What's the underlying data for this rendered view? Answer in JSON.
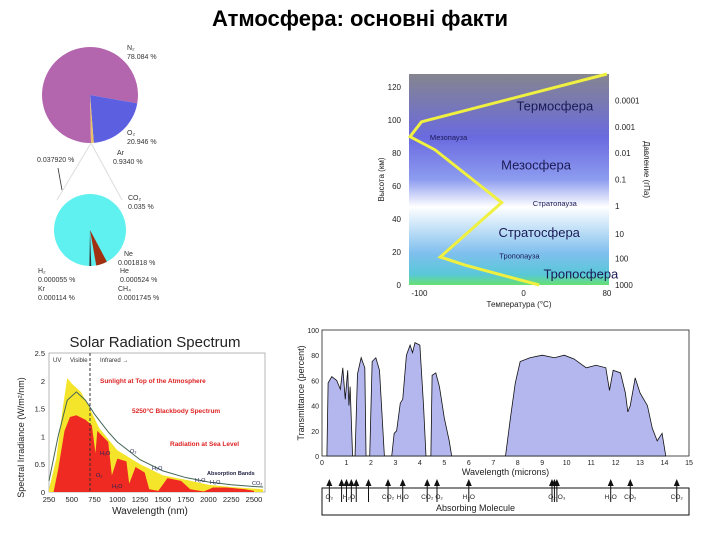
{
  "slide": {
    "title": "Атмосфера: основні факти"
  },
  "chart_data": [
    {
      "type": "pie",
      "title": "",
      "main_pie": [
        {
          "label": "N₂",
          "value_label": "78.084 %",
          "value": 78.084,
          "color": "#b366ad"
        },
        {
          "label": "O₂",
          "value_label": "20.946 %",
          "value": 20.946,
          "color": "#5b5fe0"
        },
        {
          "label": "Ar",
          "value_label": "0.9340 %",
          "value": 0.934,
          "color": "#e8c06a"
        }
      ],
      "other_label": "0.037920 %",
      "detail_pie": [
        {
          "label": "CO₂",
          "value_label": "0.035 %",
          "value": 0.035,
          "color": "#5ff0f0"
        },
        {
          "label": "Ne",
          "value_label": "0.001818 %",
          "value": 0.001818,
          "color": "#a0300f"
        },
        {
          "label": "He",
          "value_label": "0.000524 %",
          "value": 0.000524,
          "color": "#333333"
        },
        {
          "label": "CH₄",
          "value_label": "0.0001745 %",
          "value": 0.0001745,
          "color": "#777777"
        },
        {
          "label": "H₂",
          "value_label": "0.000055 %",
          "value": 5.5e-05,
          "color": "#999999"
        },
        {
          "label": "Kr",
          "value_label": "0.000114 %",
          "value": 0.000114,
          "color": "#bbbbbb"
        }
      ]
    },
    {
      "type": "line",
      "xlabel": "Температура (°C)",
      "ylabel": "Высота (км)",
      "y2label": "Давление (гПа)",
      "xlim": [
        -110,
        82
      ],
      "ylim": [
        0,
        128
      ],
      "xticks": [
        "-100",
        "0",
        "80"
      ],
      "xtick_values": [
        -100,
        0,
        80
      ],
      "yticks": [
        "0",
        "20",
        "40",
        "60",
        "80",
        "100",
        "120"
      ],
      "ytick_values": [
        0,
        20,
        40,
        60,
        80,
        100,
        120
      ],
      "y2ticks": [
        "1000",
        "100",
        "10",
        "1",
        "0.1",
        "0.01",
        "0.001",
        "0.0001"
      ],
      "y2tick_alts": [
        0,
        16,
        31,
        48,
        64,
        80,
        96,
        112
      ],
      "layers": [
        {
          "label": "Термосфера",
          "alt": 106,
          "temp": 30,
          "size": "big"
        },
        {
          "label": "Мезопауза",
          "alt": 88,
          "temp": -72,
          "size": "small"
        },
        {
          "label": "Мезосфера",
          "alt": 70,
          "temp": 12,
          "size": "big"
        },
        {
          "label": "Стратопауза",
          "alt": 48,
          "temp": 30,
          "size": "small"
        },
        {
          "label": "Стратосфера",
          "alt": 29,
          "temp": 15,
          "size": "big"
        },
        {
          "label": "Тропопауза",
          "alt": 16,
          "temp": -4,
          "size": "small"
        },
        {
          "label": "Тропосфера",
          "alt": 4,
          "temp": 55,
          "size": "big"
        }
      ],
      "series": [
        {
          "name": "Temperature",
          "color": "#f0f040",
          "points": [
            [
              15,
              0
            ],
            [
              -56,
              12
            ],
            [
              -80,
              17
            ],
            [
              -21,
              50
            ],
            [
              -85,
              82
            ],
            [
              -109,
              90
            ],
            [
              -98,
              99
            ],
            [
              80,
              128
            ]
          ]
        }
      ]
    },
    {
      "type": "area",
      "title": "Solar Radiation Spectrum",
      "xlabel": "Wavelength (nm)",
      "ylabel": "Spectral Irradiance (W/m²/nm)",
      "xlim": [
        250,
        2600
      ],
      "ylim": [
        0,
        2.5
      ],
      "xticks": [
        "250",
        "500",
        "750",
        "1000",
        "1250",
        "1500",
        "1750",
        "2000",
        "2250",
        "2500"
      ],
      "xtick_values": [
        250,
        500,
        750,
        1000,
        1250,
        1500,
        1750,
        2000,
        2250,
        2500
      ],
      "yticks": [
        "0",
        "0.5",
        "1",
        "1.5",
        "2",
        "2.5"
      ],
      "ytick_values": [
        0,
        0.5,
        1,
        1.5,
        2,
        2.5
      ],
      "regions": [
        "UV",
        "Visible",
        "Infrared →"
      ],
      "annotations": [
        "Sunlight at Top of the Atmosphere",
        "5250°C Blackbody Spectrum",
        "Radiation at Sea Level",
        "Absorption Bands"
      ],
      "band_labels": [
        "O₃",
        "O₂",
        "H₂O",
        "H₂O",
        "H₂O",
        "H₂O",
        "CO₂",
        "H₂O"
      ],
      "series": [
        {
          "name": "Top of the Atmosphere",
          "color": "#f5e52a",
          "points": [
            [
              250,
              0.05
            ],
            [
              330,
              0.6
            ],
            [
              400,
              1.5
            ],
            [
              450,
              2.05
            ],
            [
              500,
              1.95
            ],
            [
              600,
              1.8
            ],
            [
              700,
              1.5
            ],
            [
              800,
              1.15
            ],
            [
              900,
              0.95
            ],
            [
              1000,
              0.75
            ],
            [
              1250,
              0.5
            ],
            [
              1500,
              0.3
            ],
            [
              1750,
              0.22
            ],
            [
              2000,
              0.13
            ],
            [
              2250,
              0.09
            ],
            [
              2500,
              0.06
            ],
            [
              2600,
              0.05
            ]
          ]
        },
        {
          "name": "Sea Level",
          "color": "#ee2a22",
          "points": [
            [
              300,
              0
            ],
            [
              350,
              0.4
            ],
            [
              420,
              1.1
            ],
            [
              480,
              1.35
            ],
            [
              550,
              1.38
            ],
            [
              650,
              1.3
            ],
            [
              720,
              1.2
            ],
            [
              760,
              0.7
            ],
            [
              780,
              1.1
            ],
            [
              900,
              0.9
            ],
            [
              940,
              0.3
            ],
            [
              1000,
              0.6
            ],
            [
              1100,
              0.55
            ],
            [
              1130,
              0.15
            ],
            [
              1200,
              0.45
            ],
            [
              1300,
              0.35
            ],
            [
              1350,
              0.05
            ],
            [
              1450,
              0.02
            ],
            [
              1550,
              0.25
            ],
            [
              1700,
              0.2
            ],
            [
              1800,
              0.05
            ],
            [
              1950,
              0.01
            ],
            [
              2050,
              0.08
            ],
            [
              2200,
              0.08
            ],
            [
              2400,
              0.05
            ],
            [
              2500,
              0.02
            ]
          ]
        },
        {
          "name": "5250°C Blackbody Spectrum",
          "color": "#446655",
          "points": [
            [
              250,
              0.2
            ],
            [
              350,
              1.0
            ],
            [
              450,
              1.65
            ],
            [
              550,
              1.8
            ],
            [
              650,
              1.65
            ],
            [
              750,
              1.4
            ],
            [
              900,
              1.08
            ],
            [
              1000,
              0.9
            ],
            [
              1250,
              0.58
            ],
            [
              1500,
              0.38
            ],
            [
              1750,
              0.26
            ],
            [
              2000,
              0.18
            ],
            [
              2250,
              0.13
            ],
            [
              2500,
              0.1
            ],
            [
              2600,
              0.09
            ]
          ]
        }
      ]
    },
    {
      "type": "area",
      "xlabel": "Wavelength (microns)",
      "ylabel": "Transmittance (percent)",
      "xlim": [
        0,
        15
      ],
      "ylim": [
        0,
        100
      ],
      "xticks": [
        "0",
        "1",
        "2",
        "3",
        "4",
        "5",
        "6",
        "7",
        "8",
        "9",
        "10",
        "11",
        "12",
        "13",
        "14",
        "15"
      ],
      "xtick_values": [
        0,
        1,
        2,
        3,
        4,
        5,
        6,
        7,
        8,
        9,
        10,
        11,
        12,
        13,
        14,
        15
      ],
      "yticks": [
        "0",
        "20",
        "40",
        "60",
        "80",
        "100"
      ],
      "ytick_values": [
        0,
        20,
        40,
        60,
        80,
        100
      ],
      "molecule_box_label": "Absorbing Molecule",
      "molecules": [
        {
          "label": "O₂",
          "x": 0.3
        },
        {
          "label": "H₂O",
          "x": 1.1
        },
        {
          "label": "CO₂",
          "x": 2.7
        },
        {
          "label": "H₂O",
          "x": 3.3
        },
        {
          "label": "CO₂",
          "x": 4.3
        },
        {
          "label": "O₂",
          "x": 4.7
        },
        {
          "label": "H₂O",
          "x": 6.0
        },
        {
          "label": "O₂",
          "x": 9.4
        },
        {
          "label": "O₃",
          "x": 9.6
        },
        {
          "label": "H₂O",
          "x": 11.8
        },
        {
          "label": "CO₂",
          "x": 12.6
        },
        {
          "label": "CO₂",
          "x": 14.5
        }
      ],
      "arrow_positions": [
        0.3,
        0.8,
        1.0,
        1.2,
        1.4,
        1.9,
        2.7,
        3.3,
        4.3,
        4.7,
        6.0,
        9.4,
        9.5,
        9.6,
        11.8,
        12.6,
        14.5
      ],
      "series": [
        {
          "name": "Transmittance",
          "color": "#b4b6ee",
          "points": [
            [
              0.2,
              0
            ],
            [
              0.25,
              58
            ],
            [
              0.4,
              63
            ],
            [
              0.6,
              60
            ],
            [
              0.75,
              53
            ],
            [
              0.85,
              70
            ],
            [
              0.95,
              45
            ],
            [
              1.05,
              68
            ],
            [
              1.1,
              40
            ],
            [
              1.15,
              55
            ],
            [
              1.25,
              0
            ],
            [
              1.35,
              0
            ],
            [
              1.45,
              65
            ],
            [
              1.6,
              78
            ],
            [
              1.75,
              70
            ],
            [
              1.8,
              0
            ],
            [
              1.95,
              0
            ],
            [
              2.05,
              75
            ],
            [
              2.2,
              78
            ],
            [
              2.35,
              68
            ],
            [
              2.55,
              0
            ],
            [
              2.85,
              0
            ],
            [
              2.95,
              18
            ],
            [
              3.05,
              20
            ],
            [
              3.2,
              42
            ],
            [
              3.3,
              45
            ],
            [
              3.45,
              80
            ],
            [
              3.6,
              88
            ],
            [
              3.7,
              82
            ],
            [
              3.8,
              90
            ],
            [
              4.0,
              88
            ],
            [
              4.15,
              40
            ],
            [
              4.25,
              0
            ],
            [
              4.45,
              0
            ],
            [
              4.5,
              64
            ],
            [
              4.65,
              66
            ],
            [
              4.8,
              55
            ],
            [
              5.0,
              30
            ],
            [
              5.2,
              12
            ],
            [
              5.3,
              0
            ],
            [
              7.5,
              0
            ],
            [
              7.7,
              30
            ],
            [
              7.9,
              58
            ],
            [
              8.1,
              75
            ],
            [
              8.5,
              78
            ],
            [
              9.0,
              80
            ],
            [
              9.5,
              78
            ],
            [
              9.9,
              80
            ],
            [
              10.3,
              77
            ],
            [
              10.8,
              70
            ],
            [
              11.2,
              72
            ],
            [
              11.6,
              70
            ],
            [
              11.75,
              52
            ],
            [
              11.9,
              68
            ],
            [
              12.2,
              66
            ],
            [
              12.4,
              50
            ],
            [
              12.5,
              35
            ],
            [
              12.6,
              40
            ],
            [
              12.8,
              62
            ],
            [
              13.0,
              50
            ],
            [
              13.3,
              40
            ],
            [
              13.5,
              22
            ],
            [
              13.7,
              12
            ],
            [
              13.9,
              18
            ],
            [
              14.05,
              0
            ]
          ]
        }
      ]
    }
  ]
}
